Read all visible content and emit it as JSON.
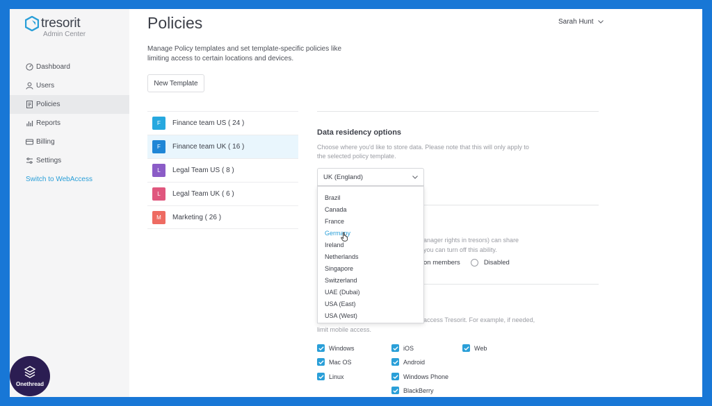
{
  "sidebar": {
    "logo_text": "tresorit",
    "logo_sub": "Admin Center",
    "items": [
      {
        "label": "Dashboard",
        "icon": "dashboard-icon"
      },
      {
        "label": "Users",
        "icon": "user-icon"
      },
      {
        "label": "Policies",
        "icon": "policy-icon",
        "active": true
      },
      {
        "label": "Reports",
        "icon": "reports-icon"
      },
      {
        "label": "Billing",
        "icon": "billing-icon"
      },
      {
        "label": "Settings",
        "icon": "settings-icon"
      }
    ],
    "webaccess_link": "Switch to WebAccess"
  },
  "header": {
    "title": "Policies",
    "user_name": "Sarah Hunt"
  },
  "main": {
    "description": "Manage Policy templates and set template-specific policies like limiting access to certain locations and devices.",
    "new_template_label": "New Template",
    "templates": [
      {
        "initial": "F",
        "name": "Finance team US ( 24 )",
        "color": "#27a8df"
      },
      {
        "initial": "F",
        "name": "Finance team UK ( 16 )",
        "color": "#1f86d6"
      },
      {
        "initial": "L",
        "name": "Legal Team US ( 8 )",
        "color": "#8b5cc7"
      },
      {
        "initial": "L",
        "name": "Legal Team UK ( 6 )",
        "color": "#e0577e"
      },
      {
        "initial": "M",
        "name": "Marketing ( 26 )",
        "color": "#ee6b62"
      }
    ]
  },
  "data_residency": {
    "title": "Data residency options",
    "help": "Choose where you'd like to store data. Please note that this will only apply to the selected policy template.",
    "selected": "UK (England)",
    "options": [
      "Brazil",
      "Canada",
      "France",
      "Germany",
      "Ireland",
      "Netherlands",
      "Singapore",
      "Switzerland",
      "UAE (Dubai)",
      "USA (East)",
      "USA (West)"
    ],
    "hovered": "Germany"
  },
  "sharing": {
    "partial_line1": "anager rights in tresors) can share",
    "partial_line2": "you can turn off this ability.",
    "option_members": "on members",
    "option_disabled": "Disabled"
  },
  "devices": {
    "partial_line1": "access Tresorit. For example, if needed,",
    "partial_line2": "limit mobile access.",
    "items": [
      {
        "label": "Windows",
        "checked": true
      },
      {
        "label": "Mac OS",
        "checked": true
      },
      {
        "label": "Linux",
        "checked": true
      },
      {
        "label": "iOS",
        "checked": true
      },
      {
        "label": "Android",
        "checked": true
      },
      {
        "label": "Windows Phone",
        "checked": true
      },
      {
        "label": "BlackBerry",
        "checked": true
      },
      {
        "label": "Web",
        "checked": true
      }
    ]
  },
  "overlay": {
    "brand_text": "Onethread"
  },
  "colors": {
    "accent": "#2a9fd8",
    "frame_border": "#1877d6"
  }
}
